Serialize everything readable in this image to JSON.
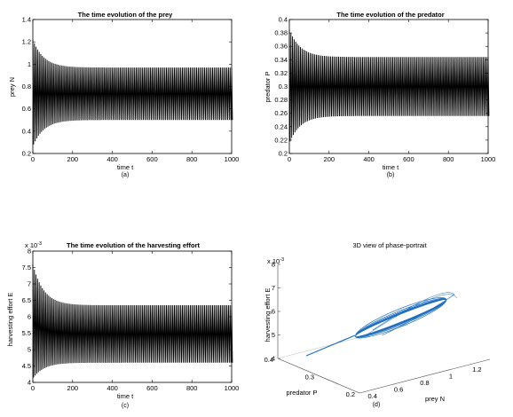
{
  "chart_data": [
    {
      "id": "a",
      "type": "line",
      "title": "The time evolution of the prey",
      "xlabel": "time t",
      "ylabel": "prey N",
      "panel_label": "(a)",
      "xlim": [
        0,
        1000
      ],
      "ylim": [
        0.2,
        1.4
      ],
      "xticks": [
        0,
        200,
        400,
        600,
        800,
        1000
      ],
      "yticks": [
        0.2,
        0.4,
        0.6,
        0.8,
        1,
        1.2,
        1.4
      ],
      "ytick_labels": [
        "0.2",
        "0.4",
        "0.6",
        "0.8",
        "1",
        "1.2",
        "1.4"
      ],
      "series": [
        {
          "color": "#000000",
          "initial_max": 1.22,
          "initial_min": 0.28,
          "steady_max": 0.97,
          "steady_min": 0.5,
          "period": 8
        }
      ]
    },
    {
      "id": "b",
      "type": "line",
      "title": "The time evolution of the predator",
      "xlabel": "time t",
      "ylabel": "predator P",
      "panel_label": "(b)",
      "xlim": [
        0,
        1000
      ],
      "ylim": [
        0.2,
        0.4
      ],
      "xticks": [
        0,
        200,
        400,
        600,
        800,
        1000
      ],
      "yticks": [
        0.2,
        0.22,
        0.24,
        0.26,
        0.28,
        0.3,
        0.32,
        0.34,
        0.36,
        0.38,
        0.4
      ],
      "ytick_labels": [
        "0.2",
        "0.22",
        "0.24",
        "0.26",
        "0.28",
        "0.3",
        "0.32",
        "0.34",
        "0.36",
        "0.38",
        "0.4"
      ],
      "series": [
        {
          "color": "#000000",
          "initial_max": 0.385,
          "initial_min": 0.218,
          "steady_max": 0.344,
          "steady_min": 0.256,
          "period": 8
        }
      ]
    },
    {
      "id": "c",
      "type": "line",
      "title": "The time evolution of the harvesting effort",
      "exponent_label": "x 10",
      "exponent_power": "-3",
      "xlabel": "time t",
      "ylabel": "harvesting effort E",
      "panel_label": "(c)",
      "xlim": [
        0,
        1000
      ],
      "ylim": [
        4,
        8
      ],
      "xticks": [
        0,
        200,
        400,
        600,
        800,
        1000
      ],
      "yticks": [
        4,
        4.5,
        5,
        5.5,
        6,
        6.5,
        7,
        7.5,
        8
      ],
      "ytick_labels": [
        "4",
        "4.5",
        "5",
        "5.5",
        "6",
        "6.5",
        "7",
        "7.5",
        "8"
      ],
      "series": [
        {
          "color": "#000000",
          "initial_max": 7.6,
          "initial_min": 4.15,
          "steady_max": 6.35,
          "steady_min": 4.6,
          "period": 8
        }
      ]
    },
    {
      "id": "d",
      "type": "line3d",
      "title": "3D view of phase-portrait",
      "xlabel": "prey N",
      "ylabel": "predator P",
      "zlabel": "harvesting effort E",
      "exponent_label": "x 10",
      "exponent_power": "-3",
      "panel_label": "(d)",
      "x_ticks": [
        0.4,
        0.6,
        0.8,
        1,
        1.2
      ],
      "x_tick_labels": [
        "0.4",
        "0.6",
        "0.8",
        "1",
        "1.2"
      ],
      "y_ticks": [
        0.2,
        0.3,
        0.4
      ],
      "y_tick_labels": [
        "0.2",
        "0.3",
        "0.4"
      ],
      "z_ticks": [
        4,
        5,
        6,
        7,
        8
      ],
      "z_tick_labels": [
        "4",
        "5",
        "6",
        "7",
        "8"
      ],
      "line_color": "#1f6fbf"
    }
  ]
}
